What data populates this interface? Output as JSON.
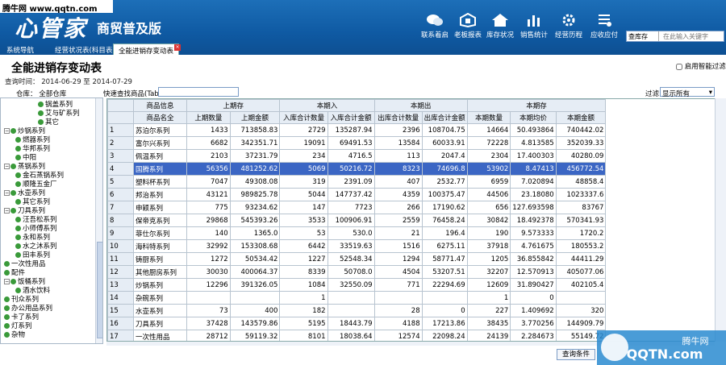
{
  "watermark_top": "腾牛网 www.qqtn.com",
  "app": {
    "logo": "心管家",
    "edition": "商贸普及版"
  },
  "toolbar": [
    {
      "label": "联系着启",
      "icon": "chat-icon"
    },
    {
      "label": "老板报表",
      "icon": "report-icon"
    },
    {
      "label": "库存状况",
      "icon": "home-icon"
    },
    {
      "label": "销售统计",
      "icon": "bar-chart-icon"
    },
    {
      "label": "经营历程",
      "icon": "gear-icon"
    },
    {
      "label": "应收应付",
      "icon": "list-icon"
    }
  ],
  "search": {
    "scope": "查库存",
    "placeholder": "在此输入关键字"
  },
  "tabs": [
    {
      "label": "系统导航"
    },
    {
      "label": "经营状况表(科目表)"
    },
    {
      "label": "全能进销存变动表"
    }
  ],
  "page": {
    "title": "全能进销存变动表",
    "smart_filter": "启用智能过滤",
    "query_time": "查询时间： 2014-06-29 至 2014-07-29",
    "warehouse": "仓库：  全部仓库",
    "quick_query_label": "快速查找商品(Tab)",
    "filter_label": "过滤",
    "filter_value": "显示所有",
    "query_button": "查询条件"
  },
  "tree": [
    {
      "label": "锅盖系列",
      "level": 3
    },
    {
      "label": "艾与矿系列",
      "level": 3
    },
    {
      "label": "其它",
      "level": 3
    },
    {
      "label": "炒锅系列",
      "level": 1,
      "exp": "−"
    },
    {
      "label": "燃器系列",
      "level": 2
    },
    {
      "label": "华邦系列",
      "level": 2
    },
    {
      "label": "中阳",
      "level": 2
    },
    {
      "label": "蒸锅系列",
      "level": 1,
      "exp": "−"
    },
    {
      "label": "金石蒸锅系列",
      "level": 2
    },
    {
      "label": "顺隆五金厂",
      "level": 2
    },
    {
      "label": "水壶系列",
      "level": 1,
      "exp": "−"
    },
    {
      "label": "其它系列",
      "level": 2
    },
    {
      "label": "刀具系列",
      "level": 1,
      "exp": "−"
    },
    {
      "label": "汪吾松系列",
      "level": 2
    },
    {
      "label": "小师傅系列",
      "level": 2
    },
    {
      "label": "永和系列",
      "level": 2
    },
    {
      "label": "水之沐系列",
      "level": 2
    },
    {
      "label": "田丰系列",
      "level": 2
    },
    {
      "label": "一次性用品",
      "level": 1
    },
    {
      "label": "配件",
      "level": 1
    },
    {
      "label": "饭桶系列",
      "level": 1,
      "exp": "−"
    },
    {
      "label": "酒水饮料",
      "level": 2
    },
    {
      "label": "刊众系列",
      "level": 1
    },
    {
      "label": "办公用品系列",
      "level": 1
    },
    {
      "label": "卡了系列",
      "level": 1
    },
    {
      "label": "灯系列",
      "level": 1
    },
    {
      "label": "杂物",
      "level": 1
    }
  ],
  "grid": {
    "group_headers": [
      "商品信息",
      "上期存",
      "本期入",
      "本期出",
      "本期存"
    ],
    "columns": [
      "商品名全",
      "上期数量",
      "上期金额",
      "入库合计数量",
      "入库合计金额",
      "出库合计数量",
      "出库合计金额",
      "本期数量",
      "本期均价",
      "本期金额"
    ],
    "rows": [
      {
        "n": "1",
        "name": "苏泊尔系列",
        "c": [
          "1433",
          "713858.83",
          "2729",
          "135287.94",
          "2396",
          "108704.75",
          "14664",
          "50.493864",
          "740442.02"
        ]
      },
      {
        "n": "2",
        "name": "富尔兴系列",
        "c": [
          "6682",
          "342351.71",
          "19091",
          "69491.53",
          "13584",
          "60033.91",
          "72228",
          "4.813585",
          "352039.33"
        ]
      },
      {
        "n": "3",
        "name": "佩温系列",
        "c": [
          "2103",
          "37231.79",
          "234",
          "4716.5",
          "113",
          "2047.4",
          "2304",
          "17.400303",
          "40280.09"
        ]
      },
      {
        "n": "4",
        "name": "国腾系列",
        "c": [
          "56356",
          "481252.62",
          "5069",
          "50216.72",
          "8323",
          "74696.8",
          "53902",
          "8.47413",
          "456772.54"
        ],
        "sel": true
      },
      {
        "n": "5",
        "name": "塑料杯系列",
        "c": [
          "7047",
          "49308.08",
          "319",
          "2391.09",
          "407",
          "2532.77",
          "6959",
          "7.020894",
          "48858.4"
        ]
      },
      {
        "n": "6",
        "name": "邦治系列",
        "c": [
          "43121",
          "989825.78",
          "5044",
          "147737.42",
          "4359",
          "100375.47",
          "44506",
          "23.18080",
          "1023337.6"
        ]
      },
      {
        "n": "7",
        "name": "申颖系列",
        "c": [
          "775",
          "93234.62",
          "147",
          "7723",
          "266",
          "17190.62",
          "656",
          "127.693598",
          "83767"
        ]
      },
      {
        "n": "8",
        "name": "保帝克系列",
        "c": [
          "29868",
          "545393.26",
          "3533",
          "100906.91",
          "2559",
          "76458.24",
          "30842",
          "18.492378",
          "570341.93"
        ]
      },
      {
        "n": "9",
        "name": "菲仕尔系列",
        "c": [
          "140",
          "1365.0",
          "53",
          "530.0",
          "21",
          "196.4",
          "190",
          "9.573333",
          "1720.2"
        ]
      },
      {
        "n": "10",
        "name": "海科特系列",
        "c": [
          "32992",
          "153308.68",
          "6442",
          "33519.63",
          "1516",
          "6275.11",
          "37918",
          "4.761675",
          "180553.2"
        ]
      },
      {
        "n": "11",
        "name": "铸厨系列",
        "c": [
          "1272",
          "50534.42",
          "1227",
          "52548.34",
          "1294",
          "58771.47",
          "1205",
          "36.855842",
          "44411.29"
        ]
      },
      {
        "n": "12",
        "name": "其他厨房系列",
        "c": [
          "30030",
          "400064.37",
          "8339",
          "50708.0",
          "4504",
          "53207.51",
          "32207",
          "12.570913",
          "405077.06"
        ]
      },
      {
        "n": "13",
        "name": "炒锅系列",
        "c": [
          "12296",
          "391326.05",
          "1084",
          "32550.09",
          "771",
          "22294.69",
          "12609",
          "31.890427",
          "402105.4"
        ]
      },
      {
        "n": "14",
        "name": "杂碗系列",
        "c": [
          "",
          "",
          "1",
          "",
          "",
          "",
          "1",
          "0",
          ""
        ]
      },
      {
        "n": "15",
        "name": "水壶系列",
        "c": [
          "73",
          "400",
          "182",
          "",
          "28",
          "0",
          "227",
          "1.409692",
          "320"
        ]
      },
      {
        "n": "16",
        "name": "刀具系列",
        "c": [
          "37428",
          "143579.86",
          "5195",
          "18443.79",
          "4188",
          "17213.86",
          "38435",
          "3.770256",
          "144909.79"
        ]
      },
      {
        "n": "17",
        "name": "一次性用品",
        "c": [
          "28712",
          "59119.32",
          "8101",
          "18038.64",
          "12574",
          "22098.24",
          "24139",
          "2.284673",
          "55149.72"
        ]
      }
    ],
    "totals": [
      "385,895.00",
      "4,508,885.09",
      "45,879.0000",
      "734,875.67",
      "57,726.0000",
      "642,825.19",
      "374,007.00",
      "",
      "4,800,115.71"
    ]
  },
  "badge": {
    "site": "腾牛网",
    "url": "QQTN.com"
  }
}
